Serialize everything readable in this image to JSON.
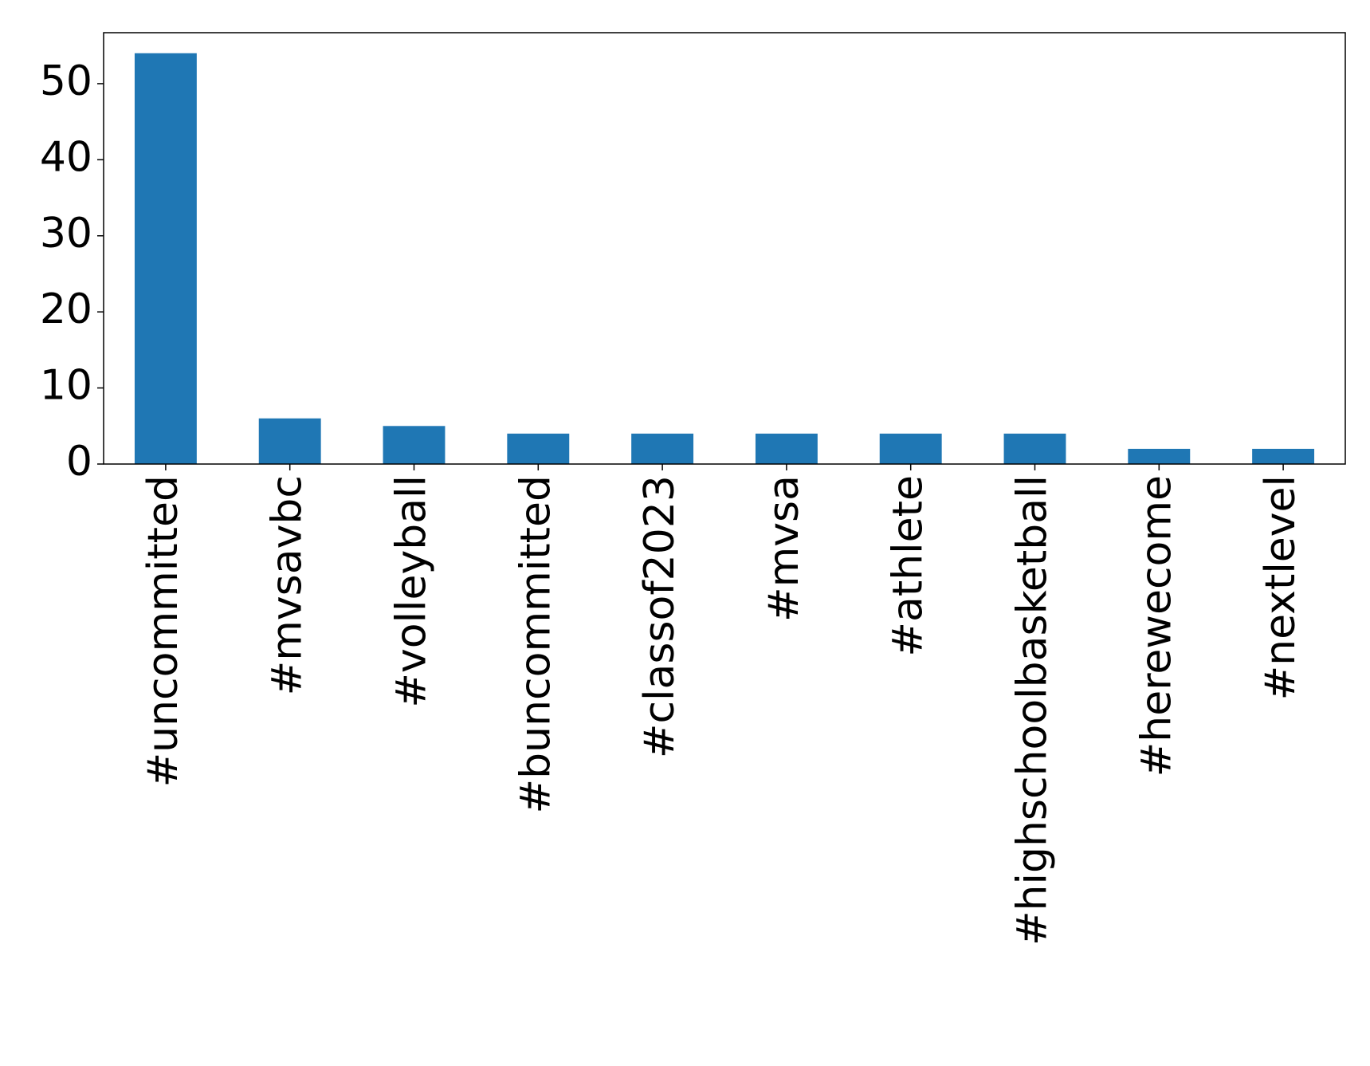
{
  "chart_data": {
    "type": "bar",
    "categories": [
      "#uncommitted",
      "#mvsavbc",
      "#volleyball",
      "#buncommitted",
      "#classof2023",
      "#mvsa",
      "#athlete",
      "#highschoolbasketball",
      "#herewecome",
      "#nextlevel"
    ],
    "values": [
      54,
      6,
      5,
      4,
      4,
      4,
      4,
      4,
      2,
      2
    ],
    "color": "#1f77b4",
    "ylim": [
      0,
      56.7
    ],
    "yticks": [
      0,
      10,
      20,
      30,
      40,
      50
    ],
    "grid": false
  }
}
